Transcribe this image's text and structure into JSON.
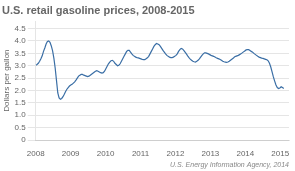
{
  "chart_data": {
    "type": "line",
    "title": "U.S. retail gasoline prices, 2008-2015",
    "ylabel": "Dollars per gallon",
    "annotation": "U.S. Energy Information Agency, 2014",
    "color": "#3A6EA5",
    "grid": "y",
    "xlim": [
      2008.0,
      2015.25
    ],
    "xticks": [
      2008,
      2009,
      2010,
      2011,
      2012,
      2013,
      2014,
      2015
    ],
    "ylim": [
      0,
      4.8
    ],
    "yticks": [
      0,
      0.5,
      {
        "value": 1.0,
        "label": "1.0"
      },
      1.5,
      {
        "value": 2.0,
        "label": "2.0"
      },
      2.5,
      {
        "value": 3.0,
        "label": "3.0"
      },
      3.5,
      {
        "value": 4.0,
        "label": "4.0"
      },
      4.5
    ],
    "x": [
      2008.0,
      2008.0372,
      2008.0743,
      2008.1115,
      2008.1487,
      2008.1859,
      2008.223,
      2008.2602,
      2008.2974,
      2008.3346,
      2008.3717,
      2008.4089,
      2008.4461,
      2008.4832,
      2008.5204,
      2008.5576,
      2008.5948,
      2008.6319,
      2008.6691,
      2008.7063,
      2008.7435,
      2008.7806,
      2008.8178,
      2008.855,
      2008.8921,
      2008.9293,
      2008.9665,
      2009.0037,
      2009.0408,
      2009.078,
      2009.1152,
      2009.1524,
      2009.1895,
      2009.2267,
      2009.2639,
      2009.301,
      2009.3382,
      2009.3754,
      2009.4126,
      2009.4497,
      2009.4869,
      2009.5241,
      2009.5613,
      2009.5984,
      2009.6356,
      2009.6728,
      2009.7099,
      2009.7471,
      2009.7843,
      2009.8215,
      2009.8586,
      2009.8958,
      2009.933,
      2009.9702,
      2010.0073,
      2010.0445,
      2010.0817,
      2010.1188,
      2010.156,
      2010.1932,
      2010.2304,
      2010.2675,
      2010.3047,
      2010.3419,
      2010.3791,
      2010.4162,
      2010.4534,
      2010.4906,
      2010.5277,
      2010.5649,
      2010.6021,
      2010.6393,
      2010.6764,
      2010.7136,
      2010.7508,
      2010.788,
      2010.8251,
      2010.8623,
      2010.8995,
      2010.9366,
      2010.9738,
      2011.011,
      2011.0482,
      2011.0853,
      2011.1225,
      2011.1597,
      2011.1969,
      2011.234,
      2011.2712,
      2011.3084,
      2011.3455,
      2011.3827,
      2011.4199,
      2011.4571,
      2011.4942,
      2011.5314,
      2011.5686,
      2011.6058,
      2011.6429,
      2011.6801,
      2011.7173,
      2011.7545,
      2011.7916,
      2011.8288,
      2011.866,
      2011.9031,
      2011.9403,
      2011.9775,
      2012.0147,
      2012.0518,
      2012.089,
      2012.1262,
      2012.1634,
      2012.2005,
      2012.2377,
      2012.2749,
      2012.312,
      2012.3492,
      2012.3864,
      2012.4236,
      2012.4607,
      2012.4979,
      2012.5351,
      2012.5723,
      2012.6094,
      2012.6466,
      2012.6838,
      2012.7209,
      2012.7581,
      2012.7953,
      2012.8325,
      2012.8696,
      2012.9068,
      2012.944,
      2012.9812,
      2013.0183,
      2013.0555,
      2013.0927,
      2013.1298,
      2013.167,
      2013.2042,
      2013.2414,
      2013.2785,
      2013.3157,
      2013.3529,
      2013.3901,
      2013.4272,
      2013.4644,
      2013.5016,
      2013.5387,
      2013.5759,
      2013.6131,
      2013.6503,
      2013.6874,
      2013.7246,
      2013.7618,
      2013.799,
      2013.8361,
      2013.8733,
      2013.9105,
      2013.9476,
      2013.9848,
      2014.022,
      2014.0592,
      2014.0963,
      2014.1335,
      2014.1707,
      2014.2079,
      2014.245,
      2014.2822,
      2014.3194,
      2014.3565,
      2014.3937,
      2014.4309,
      2014.4681,
      2014.5052,
      2014.5424,
      2014.5796,
      2014.6168,
      2014.6539,
      2014.6911,
      2014.7283,
      2014.7654,
      2014.8026,
      2014.8398,
      2014.877,
      2014.9141,
      2014.9513,
      2014.9885,
      2015.0257,
      2015.0628,
      2015.1
    ],
    "values": [
      3.02,
      3.05,
      3.1,
      3.18,
      3.28,
      3.4,
      3.58,
      3.72,
      3.88,
      3.98,
      4.0,
      3.95,
      3.8,
      3.6,
      3.3,
      2.9,
      2.4,
      1.9,
      1.7,
      1.65,
      1.68,
      1.75,
      1.85,
      1.96,
      2.05,
      2.12,
      2.18,
      2.22,
      2.25,
      2.3,
      2.35,
      2.42,
      2.5,
      2.58,
      2.62,
      2.65,
      2.65,
      2.62,
      2.6,
      2.58,
      2.56,
      2.58,
      2.62,
      2.66,
      2.7,
      2.74,
      2.78,
      2.8,
      2.78,
      2.75,
      2.72,
      2.7,
      2.72,
      2.78,
      2.88,
      2.98,
      3.08,
      3.15,
      3.2,
      3.22,
      3.18,
      3.1,
      3.05,
      3.0,
      3.02,
      3.08,
      3.18,
      3.28,
      3.38,
      3.48,
      3.58,
      3.62,
      3.62,
      3.55,
      3.48,
      3.42,
      3.38,
      3.35,
      3.33,
      3.32,
      3.3,
      3.28,
      3.26,
      3.25,
      3.25,
      3.28,
      3.32,
      3.38,
      3.48,
      3.58,
      3.68,
      3.78,
      3.85,
      3.9,
      3.88,
      3.85,
      3.78,
      3.7,
      3.62,
      3.55,
      3.48,
      3.42,
      3.38,
      3.35,
      3.33,
      3.33,
      3.35,
      3.38,
      3.42,
      3.48,
      3.58,
      3.65,
      3.7,
      3.68,
      3.62,
      3.55,
      3.48,
      3.4,
      3.33,
      3.27,
      3.22,
      3.18,
      3.16,
      3.15,
      3.18,
      3.22,
      3.28,
      3.35,
      3.42,
      3.48,
      3.52,
      3.52,
      3.5,
      3.48,
      3.45,
      3.42,
      3.4,
      3.38,
      3.35,
      3.32,
      3.3,
      3.28,
      3.25,
      3.22,
      3.18,
      3.16,
      3.15,
      3.14,
      3.15,
      3.18,
      3.22,
      3.26,
      3.3,
      3.35,
      3.38,
      3.4,
      3.42,
      3.45,
      3.48,
      3.52,
      3.56,
      3.6,
      3.64,
      3.65,
      3.65,
      3.62,
      3.58,
      3.55,
      3.5,
      3.46,
      3.42,
      3.38,
      3.35,
      3.33,
      3.31,
      3.3,
      3.28,
      3.26,
      3.24,
      3.2,
      3.1,
      2.95,
      2.75,
      2.55,
      2.38,
      2.22,
      2.12,
      2.08,
      2.1,
      2.15,
      2.12,
      2.08
    ]
  }
}
